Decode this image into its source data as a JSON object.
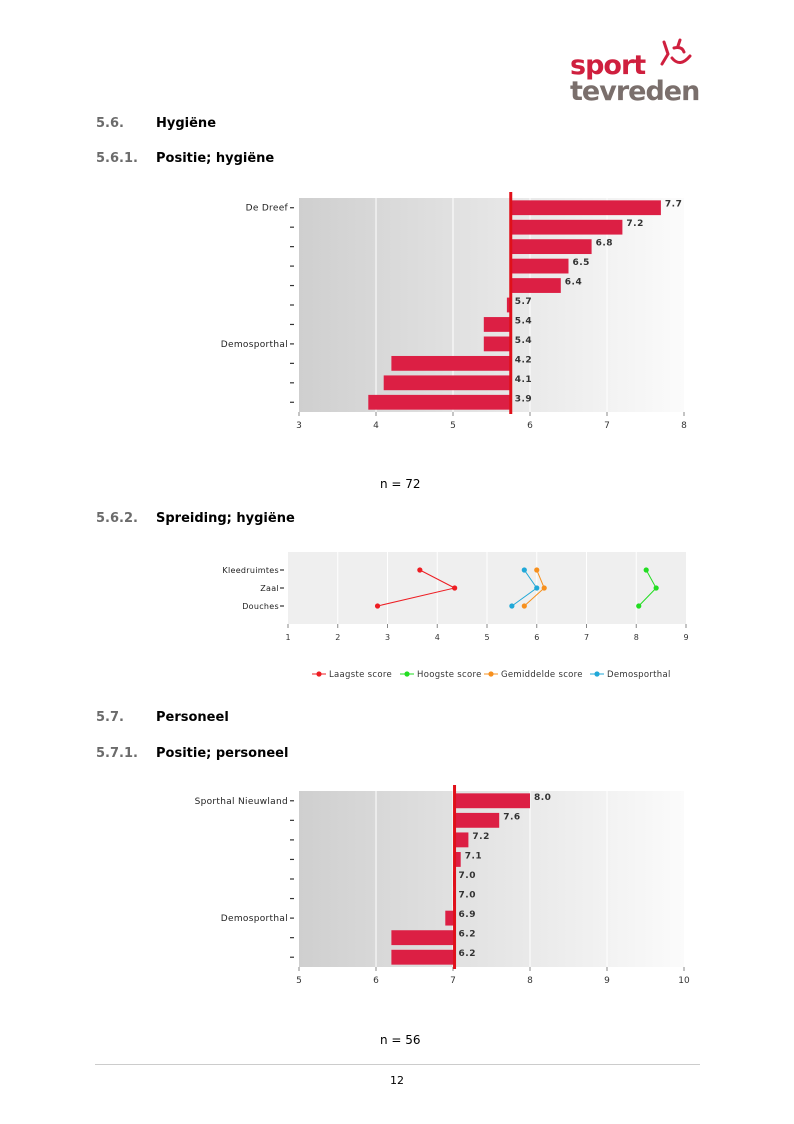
{
  "logo": {
    "line1": "sport",
    "line2": "tevreden"
  },
  "sections": {
    "s56": {
      "num": "5.6.",
      "title": "Hygiëne"
    },
    "s561": {
      "num": "5.6.1.",
      "title": "Positie; hygiëne"
    },
    "s562": {
      "num": "5.6.2.",
      "title": "Spreiding; hygiëne"
    },
    "s57": {
      "num": "5.7.",
      "title": "Personeel"
    },
    "s571": {
      "num": "5.7.1.",
      "title": "Positie; personeel"
    }
  },
  "n_hygiene": "n = 72",
  "n_personeel": "n = 56",
  "page_number": "12",
  "colors": {
    "bar": "#dc1f44",
    "reference_line": "#e0101a",
    "lowest": "#ee1d23",
    "highest": "#22dd22",
    "average": "#f7901e",
    "demo": "#20a8d8"
  },
  "chart_data": [
    {
      "type": "bar",
      "orientation": "horizontal",
      "categories": [
        "De Dreef",
        "",
        "",
        "",
        "",
        "",
        "",
        "Demosporthal",
        "",
        "",
        ""
      ],
      "values": [
        7.7,
        7.2,
        6.8,
        6.5,
        6.4,
        5.7,
        5.4,
        5.4,
        4.2,
        4.1,
        3.9
      ],
      "value_labels": [
        "7.7",
        "7.2",
        "6.8",
        "6.5",
        "6.4",
        "5.7",
        "5.4",
        "5.4",
        "4.2",
        "4.1",
        "3.9"
      ],
      "reference_value": 5.75,
      "xlim": [
        3,
        8
      ],
      "xticks": [
        "3",
        "4",
        "5",
        "6",
        "7",
        "8"
      ]
    },
    {
      "type": "line",
      "orientation": "horizontal",
      "categories": [
        "Kleedruimtes",
        "Zaal",
        "Douches"
      ],
      "xlim": [
        1,
        9
      ],
      "xticks": [
        "1",
        "2",
        "3",
        "4",
        "5",
        "6",
        "7",
        "8",
        "9"
      ],
      "legend_position": "bottom",
      "series": [
        {
          "name": "Laagste score",
          "color": "#ee1d23",
          "values": [
            3.65,
            4.35,
            2.8
          ]
        },
        {
          "name": "Hoogste score",
          "color": "#22dd22",
          "values": [
            8.2,
            8.4,
            8.05
          ]
        },
        {
          "name": "Gemiddelde score",
          "color": "#f7901e",
          "values": [
            6.0,
            6.15,
            5.75
          ]
        },
        {
          "name": "Demosporthal",
          "color": "#20a8d8",
          "values": [
            5.75,
            6.0,
            5.5
          ]
        }
      ]
    },
    {
      "type": "bar",
      "orientation": "horizontal",
      "categories": [
        "Sporthal Nieuwland",
        "",
        "",
        "",
        "",
        "",
        "Demosporthal",
        "",
        ""
      ],
      "values": [
        8.0,
        7.6,
        7.2,
        7.1,
        7.0,
        7.0,
        6.9,
        6.2,
        6.2
      ],
      "value_labels": [
        "8.0",
        "7.6",
        "7.2",
        "7.1",
        "7.0",
        "7.0",
        "6.9",
        "6.2",
        "6.2"
      ],
      "reference_value": 7.02,
      "xlim": [
        5,
        10
      ],
      "xticks": [
        "5",
        "6",
        "7",
        "8",
        "9",
        "10"
      ]
    }
  ]
}
